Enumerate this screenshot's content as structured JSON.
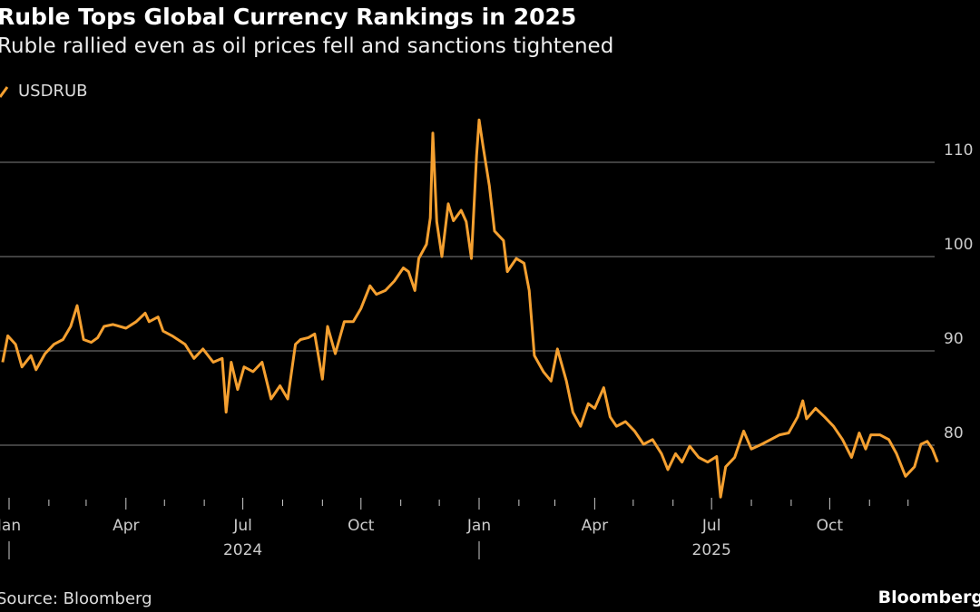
{
  "colors": {
    "line": "#f5a030",
    "grid": "#666666",
    "background": "#000000"
  },
  "chart_data": {
    "type": "line",
    "title": "Ruble Tops Global Currency Rankings in 2025",
    "subtitle": "Ruble rallied even as oil prices fell and sanctions tightened",
    "source": "Source: Bloomberg",
    "brand": "Bloomberg",
    "legend_placement": "top-left",
    "grid": "horizontal",
    "ylim": [
      73,
      116
    ],
    "yticks": [
      80,
      90,
      100,
      110
    ],
    "xlim": [
      "2023-12-27",
      "2025-12-31"
    ],
    "xticks": [
      {
        "date": "2024-01-01",
        "label": "Jan"
      },
      {
        "date": "2024-04-01",
        "label": "Apr"
      },
      {
        "date": "2024-07-01",
        "label": "Jul"
      },
      {
        "date": "2024-10-01",
        "label": "Oct"
      },
      {
        "date": "2025-01-01",
        "label": "Jan"
      },
      {
        "date": "2025-04-01",
        "label": "Apr"
      },
      {
        "date": "2025-07-01",
        "label": "Jul"
      },
      {
        "date": "2025-10-01",
        "label": "Oct"
      }
    ],
    "years": [
      {
        "label": "2024",
        "center": "2024-07-01",
        "start": "2024-01-01"
      },
      {
        "label": "2025",
        "center": "2025-07-01",
        "start": "2025-01-01"
      }
    ],
    "series": [
      {
        "name": "USDRUB",
        "points": [
          [
            "2023-12-27",
            88.8
          ],
          [
            "2023-12-31",
            91.6
          ],
          [
            "2024-01-06",
            90.7
          ],
          [
            "2024-01-11",
            88.3
          ],
          [
            "2024-01-18",
            89.5
          ],
          [
            "2024-01-22",
            88.0
          ],
          [
            "2024-01-29",
            89.7
          ],
          [
            "2024-02-05",
            90.7
          ],
          [
            "2024-02-12",
            91.2
          ],
          [
            "2024-02-18",
            92.6
          ],
          [
            "2024-02-23",
            94.8
          ],
          [
            "2024-02-28",
            91.2
          ],
          [
            "2024-03-05",
            90.9
          ],
          [
            "2024-03-10",
            91.4
          ],
          [
            "2024-03-15",
            92.6
          ],
          [
            "2024-03-22",
            92.8
          ],
          [
            "2024-04-01",
            92.4
          ],
          [
            "2024-04-09",
            93.1
          ],
          [
            "2024-04-16",
            94.0
          ],
          [
            "2024-04-19",
            93.1
          ],
          [
            "2024-04-26",
            93.6
          ],
          [
            "2024-04-30",
            92.1
          ],
          [
            "2024-05-07",
            91.6
          ],
          [
            "2024-05-17",
            90.7
          ],
          [
            "2024-05-24",
            89.2
          ],
          [
            "2024-05-31",
            90.2
          ],
          [
            "2024-06-08",
            88.8
          ],
          [
            "2024-06-15",
            89.2
          ],
          [
            "2024-06-18",
            83.5
          ],
          [
            "2024-06-22",
            88.8
          ],
          [
            "2024-06-27",
            85.9
          ],
          [
            "2024-07-02",
            88.3
          ],
          [
            "2024-07-09",
            87.8
          ],
          [
            "2024-07-16",
            88.8
          ],
          [
            "2024-07-23",
            84.9
          ],
          [
            "2024-07-30",
            86.3
          ],
          [
            "2024-08-05",
            84.9
          ],
          [
            "2024-08-11",
            90.7
          ],
          [
            "2024-08-15",
            91.2
          ],
          [
            "2024-08-21",
            91.4
          ],
          [
            "2024-08-26",
            91.8
          ],
          [
            "2024-09-01",
            87.0
          ],
          [
            "2024-09-05",
            92.6
          ],
          [
            "2024-09-11",
            89.7
          ],
          [
            "2024-09-18",
            93.1
          ],
          [
            "2024-09-25",
            93.1
          ],
          [
            "2024-10-01",
            94.5
          ],
          [
            "2024-10-08",
            96.9
          ],
          [
            "2024-10-13",
            96.0
          ],
          [
            "2024-10-20",
            96.4
          ],
          [
            "2024-10-27",
            97.4
          ],
          [
            "2024-11-03",
            98.8
          ],
          [
            "2024-11-07",
            98.4
          ],
          [
            "2024-11-12",
            96.4
          ],
          [
            "2024-11-15",
            99.8
          ],
          [
            "2024-11-21",
            101.3
          ],
          [
            "2024-11-24",
            104.1
          ],
          [
            "2024-11-26",
            113.1
          ],
          [
            "2024-11-29",
            103.7
          ],
          [
            "2024-12-03",
            100.0
          ],
          [
            "2024-12-08",
            105.6
          ],
          [
            "2024-12-12",
            103.8
          ],
          [
            "2024-12-18",
            104.9
          ],
          [
            "2024-12-22",
            103.7
          ],
          [
            "2024-12-26",
            99.8
          ],
          [
            "2024-12-30",
            110.7
          ],
          [
            "2025-01-01",
            114.5
          ],
          [
            "2025-01-04",
            111.8
          ],
          [
            "2025-01-09",
            107.5
          ],
          [
            "2025-01-13",
            102.7
          ],
          [
            "2025-01-20",
            101.7
          ],
          [
            "2025-01-23",
            98.4
          ],
          [
            "2025-01-30",
            99.8
          ],
          [
            "2025-02-05",
            99.3
          ],
          [
            "2025-02-09",
            96.4
          ],
          [
            "2025-02-13",
            89.5
          ],
          [
            "2025-02-20",
            87.8
          ],
          [
            "2025-02-26",
            86.8
          ],
          [
            "2025-03-03",
            90.2
          ],
          [
            "2025-03-10",
            86.8
          ],
          [
            "2025-03-15",
            83.5
          ],
          [
            "2025-03-21",
            82.0
          ],
          [
            "2025-03-27",
            84.4
          ],
          [
            "2025-04-01",
            83.9
          ],
          [
            "2025-04-08",
            86.1
          ],
          [
            "2025-04-13",
            83.0
          ],
          [
            "2025-04-18",
            82.0
          ],
          [
            "2025-04-25",
            82.5
          ],
          [
            "2025-05-02",
            81.5
          ],
          [
            "2025-05-09",
            80.1
          ],
          [
            "2025-05-16",
            80.6
          ],
          [
            "2025-05-23",
            79.1
          ],
          [
            "2025-05-28",
            77.4
          ],
          [
            "2025-06-03",
            79.1
          ],
          [
            "2025-06-08",
            78.2
          ],
          [
            "2025-06-14",
            79.9
          ],
          [
            "2025-06-21",
            78.7
          ],
          [
            "2025-06-28",
            78.2
          ],
          [
            "2025-07-05",
            78.8
          ],
          [
            "2025-07-08",
            74.5
          ],
          [
            "2025-07-12",
            77.7
          ],
          [
            "2025-07-19",
            78.7
          ],
          [
            "2025-07-26",
            81.5
          ],
          [
            "2025-08-01",
            79.6
          ],
          [
            "2025-08-09",
            80.1
          ],
          [
            "2025-08-16",
            80.6
          ],
          [
            "2025-08-23",
            81.1
          ],
          [
            "2025-08-30",
            81.3
          ],
          [
            "2025-09-06",
            83.0
          ],
          [
            "2025-09-10",
            84.7
          ],
          [
            "2025-09-13",
            82.8
          ],
          [
            "2025-09-20",
            83.9
          ],
          [
            "2025-09-27",
            83.0
          ],
          [
            "2025-10-04",
            82.0
          ],
          [
            "2025-10-11",
            80.6
          ],
          [
            "2025-10-18",
            78.7
          ],
          [
            "2025-10-24",
            81.3
          ],
          [
            "2025-10-29",
            79.6
          ],
          [
            "2025-11-02",
            81.1
          ],
          [
            "2025-11-09",
            81.1
          ],
          [
            "2025-11-16",
            80.6
          ],
          [
            "2025-11-22",
            79.1
          ],
          [
            "2025-11-29",
            76.7
          ],
          [
            "2025-12-06",
            77.7
          ],
          [
            "2025-12-11",
            80.1
          ],
          [
            "2025-12-16",
            80.4
          ],
          [
            "2025-12-20",
            79.6
          ],
          [
            "2025-12-24",
            78.2
          ]
        ]
      }
    ]
  }
}
